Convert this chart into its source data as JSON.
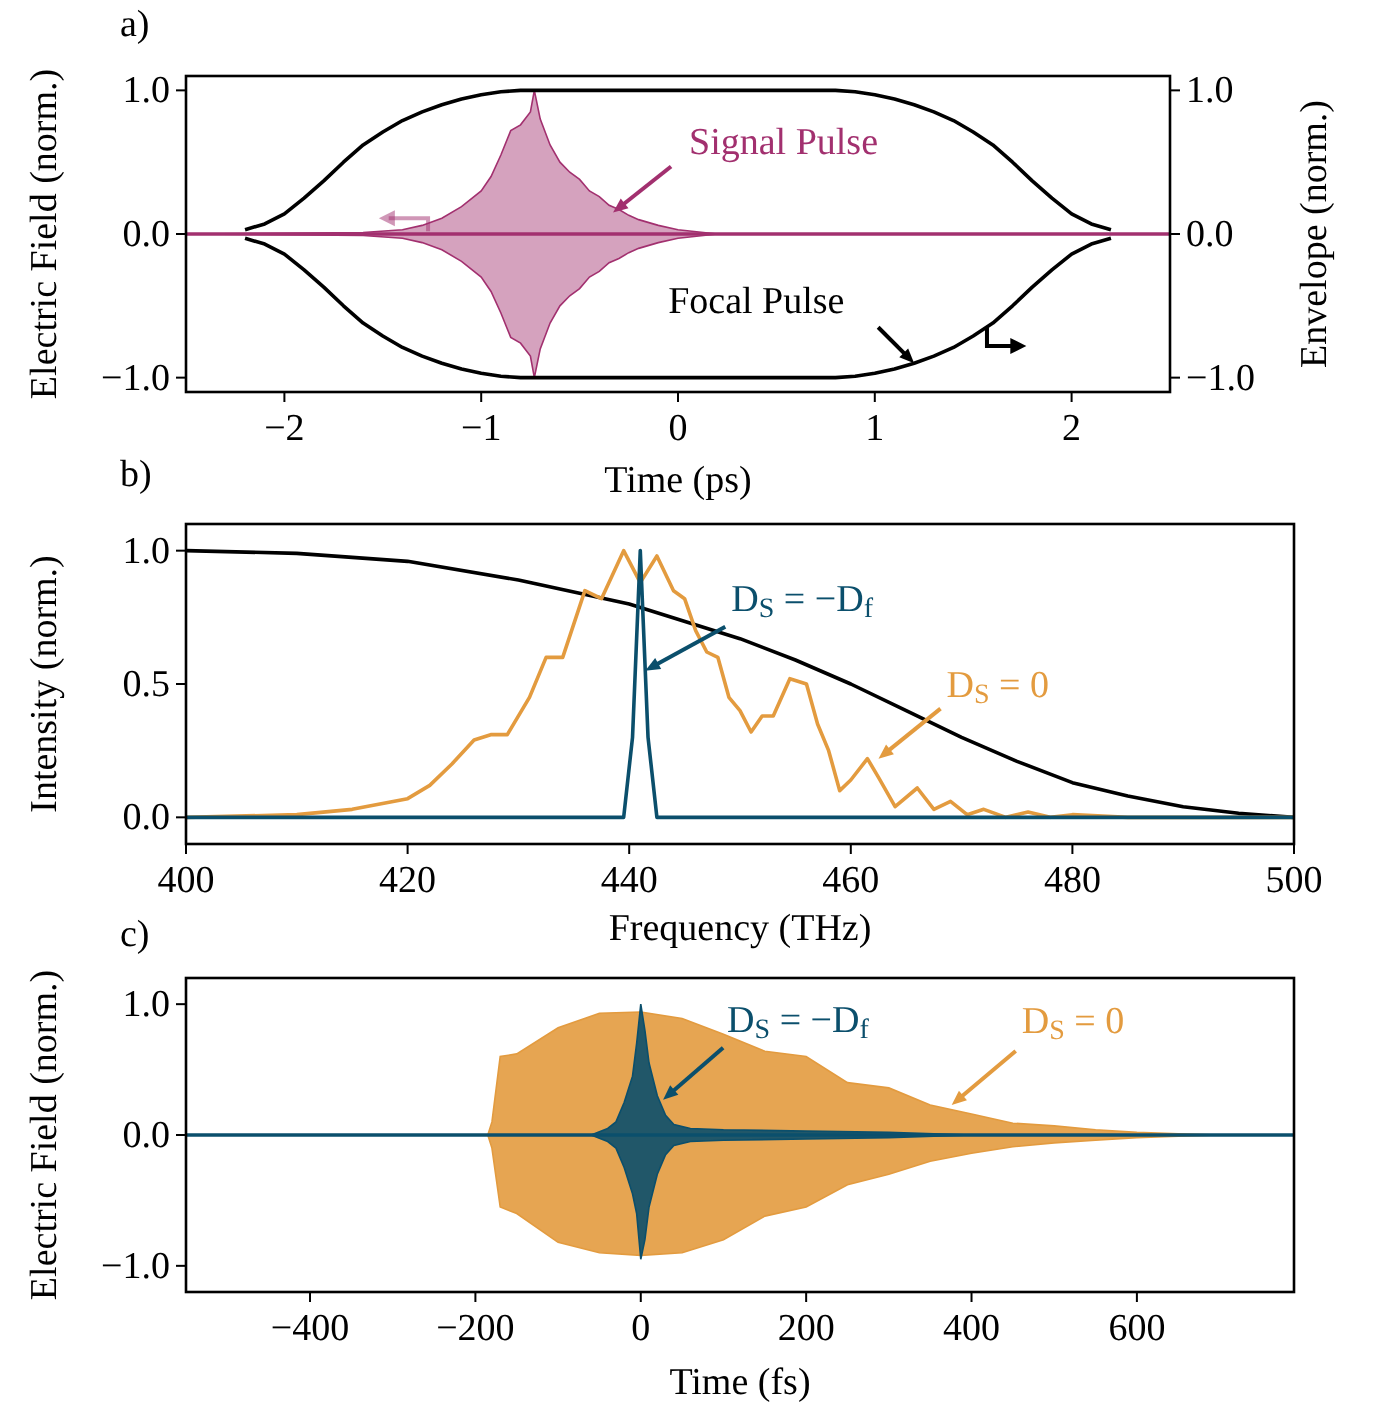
{
  "chart_data": [
    {
      "type": "line",
      "title": "a)",
      "xlabel": "Time (ps)",
      "ylabel": "Electric Field (norm.)",
      "y2label": "Envelope (norm.)",
      "xlim": [
        -2.5,
        2.5
      ],
      "xticks": [
        {
          "value": -2,
          "label": "−2"
        },
        {
          "value": -1,
          "label": "−1"
        },
        0,
        1,
        2
      ],
      "ylim": [
        -1.1,
        1.1
      ],
      "yticks": [
        {
          "value": -1,
          "label": "−1.0"
        },
        {
          "value": 0,
          "label": "0.0"
        },
        {
          "value": 1,
          "label": "1.0"
        }
      ],
      "y2lim": [
        -1.1,
        1.1
      ],
      "y2ticks": [
        {
          "value": -1,
          "label": "−1.0"
        },
        {
          "value": 0,
          "label": "0.0"
        },
        {
          "value": 1,
          "label": "1.0"
        }
      ],
      "series": [
        {
          "color": "#a2306f",
          "x": [
            -2.5,
            -1.6,
            -1.4,
            -1.3,
            -1.2,
            -1.1,
            -1.0,
            -0.95,
            -0.9,
            -0.85,
            -0.8,
            -0.75,
            -0.73,
            -0.7,
            -0.65,
            -0.6,
            -0.55,
            -0.5,
            -0.45,
            -0.4,
            -0.35,
            -0.3,
            -0.25,
            -0.2,
            -0.1,
            0,
            0.2,
            2.5
          ],
          "values": [
            0,
            0,
            0,
            0,
            0,
            0,
            0,
            0,
            0,
            0,
            0,
            0,
            0,
            0,
            0,
            0,
            0,
            0,
            0,
            0,
            0,
            0,
            0,
            0,
            0,
            0,
            0,
            0
          ],
          "upper": [
            0,
            0.01,
            0.03,
            0.06,
            0.11,
            0.19,
            0.3,
            0.4,
            0.55,
            0.72,
            0.76,
            0.85,
            1.0,
            0.8,
            0.62,
            0.5,
            0.43,
            0.38,
            0.3,
            0.26,
            0.2,
            0.17,
            0.13,
            0.1,
            0.06,
            0.03,
            0,
            0
          ],
          "lower": [
            0,
            -0.01,
            -0.03,
            -0.06,
            -0.11,
            -0.19,
            -0.3,
            -0.4,
            -0.55,
            -0.72,
            -0.76,
            -0.85,
            -1.0,
            -0.8,
            -0.62,
            -0.5,
            -0.43,
            -0.38,
            -0.3,
            -0.26,
            -0.2,
            -0.17,
            -0.13,
            -0.1,
            -0.06,
            -0.03,
            0,
            0
          ]
        },
        {
          "color": "#000000",
          "x": [
            -2.2,
            -2.1,
            -2.0,
            -1.9,
            -1.8,
            -1.7,
            -1.6,
            -1.5,
            -1.4,
            -1.3,
            -1.2,
            -1.1,
            -1.0,
            -0.9,
            -0.8,
            0.8,
            0.9,
            1.0,
            1.1,
            1.2,
            1.3,
            1.4,
            1.5,
            1.6,
            1.7,
            1.8,
            1.9,
            2.0,
            2.1,
            2.2
          ],
          "values": [
            0.03,
            0.07,
            0.14,
            0.25,
            0.37,
            0.5,
            0.62,
            0.71,
            0.79,
            0.85,
            0.9,
            0.94,
            0.97,
            0.99,
            1.0,
            1.0,
            0.99,
            0.97,
            0.94,
            0.9,
            0.85,
            0.79,
            0.71,
            0.62,
            0.5,
            0.37,
            0.25,
            0.14,
            0.07,
            0.03
          ]
        },
        {
          "color": "#000000",
          "x": [
            -2.2,
            -2.1,
            -2.0,
            -1.9,
            -1.8,
            -1.7,
            -1.6,
            -1.5,
            -1.4,
            -1.3,
            -1.2,
            -1.1,
            -1.0,
            -0.9,
            -0.8,
            0.8,
            0.9,
            1.0,
            1.1,
            1.2,
            1.3,
            1.4,
            1.5,
            1.6,
            1.7,
            1.8,
            1.9,
            2.0,
            2.1,
            2.2
          ],
          "values": [
            -0.03,
            -0.07,
            -0.14,
            -0.25,
            -0.37,
            -0.5,
            -0.62,
            -0.71,
            -0.79,
            -0.85,
            -0.9,
            -0.94,
            -0.97,
            -0.99,
            -1.0,
            -1.0,
            -0.99,
            -0.97,
            -0.94,
            -0.9,
            -0.85,
            -0.79,
            -0.71,
            -0.62,
            -0.5,
            -0.37,
            -0.25,
            -0.14,
            -0.07,
            -0.03
          ]
        }
      ],
      "annotations": [
        {
          "text": "Signal Pulse",
          "x": -0.33,
          "y": 0.15
        },
        {
          "text": "Focal Pulse",
          "x": 1.2,
          "y": -0.9
        }
      ]
    },
    {
      "type": "line",
      "title": "b)",
      "xlabel": "Frequency (THz)",
      "ylabel": "Intensity (norm.)",
      "xlim": [
        400,
        500
      ],
      "xticks": [
        400,
        420,
        440,
        460,
        480,
        500
      ],
      "ylim": [
        -0.1,
        1.1
      ],
      "yticks": [
        {
          "value": 0,
          "label": "0.0"
        },
        {
          "value": 0.5,
          "label": "0.5"
        },
        {
          "value": 1,
          "label": "1.0"
        }
      ],
      "series": [
        {
          "color": "#000000",
          "x": [
            400,
            410,
            420,
            430,
            440,
            450,
            455,
            460,
            465,
            470,
            475,
            480,
            485,
            490,
            495,
            500
          ],
          "values": [
            1.0,
            0.99,
            0.96,
            0.89,
            0.8,
            0.67,
            0.59,
            0.5,
            0.4,
            0.3,
            0.21,
            0.13,
            0.08,
            0.04,
            0.015,
            0
          ]
        },
        {
          "color": "#e39b3f",
          "x": [
            400,
            410,
            415,
            420,
            422,
            424,
            426,
            427.5,
            429,
            431,
            432.5,
            434,
            436,
            437.5,
            439.5,
            441,
            442.5,
            444,
            445,
            446,
            447,
            448,
            449,
            450,
            451,
            452,
            453,
            454.5,
            456,
            457,
            458,
            459,
            460,
            461.5,
            462.5,
            464,
            466,
            467.5,
            469,
            470.5,
            472,
            474,
            476,
            478,
            480,
            485,
            500
          ],
          "values": [
            0,
            0.01,
            0.03,
            0.07,
            0.12,
            0.2,
            0.29,
            0.31,
            0.31,
            0.45,
            0.6,
            0.6,
            0.85,
            0.82,
            1.0,
            0.88,
            0.98,
            0.85,
            0.82,
            0.7,
            0.62,
            0.6,
            0.45,
            0.4,
            0.32,
            0.38,
            0.38,
            0.52,
            0.5,
            0.35,
            0.25,
            0.1,
            0.14,
            0.22,
            0.15,
            0.04,
            0.11,
            0.03,
            0.06,
            0.01,
            0.03,
            0,
            0.02,
            0,
            0.01,
            0,
            0
          ]
        },
        {
          "color": "#0b4f6c",
          "x": [
            400,
            439.5,
            440.3,
            441,
            441.7,
            442.5,
            500
          ],
          "values": [
            0,
            0,
            0.3,
            1.0,
            0.3,
            0,
            0
          ]
        }
      ],
      "annotations": [
        {
          "text": "D$_{S}$ = −D$_{f}$",
          "x": 441.45,
          "y": 0.55
        },
        {
          "text": "D$_{S}$ = 0",
          "x": 462.5,
          "y": 0.22
        }
      ]
    },
    {
      "type": "line",
      "title": "c)",
      "xlabel": "Time (fs)",
      "ylabel": "Electric Field (norm.)",
      "xlim": [
        -550,
        790
      ],
      "xticks": [
        {
          "value": -400,
          "label": "−400"
        },
        {
          "value": -200,
          "label": "−200"
        },
        0,
        200,
        400,
        600
      ],
      "ylim": [
        -1.2,
        1.2
      ],
      "yticks": [
        {
          "value": -1,
          "label": "−1.0"
        },
        {
          "value": 0,
          "label": "0.0"
        },
        {
          "value": 1,
          "label": "1.0"
        }
      ],
      "series": [
        {
          "color": "#e39b3f",
          "x": [
            -550,
            -185,
            -180,
            -170,
            -150,
            -100,
            -50,
            0,
            50,
            100,
            150,
            200,
            250,
            300,
            350,
            400,
            450,
            500,
            550,
            600,
            650,
            700,
            790
          ],
          "values": [
            null,
            null,
            null,
            null,
            null,
            null,
            null,
            null,
            null,
            null,
            null,
            null,
            null,
            null,
            null,
            null,
            null,
            null,
            null,
            null,
            null,
            null,
            null
          ],
          "upper": [
            0,
            0,
            0.1,
            0.6,
            0.62,
            0.82,
            0.93,
            0.94,
            0.89,
            0.77,
            0.64,
            0.6,
            0.4,
            0.36,
            0.23,
            0.16,
            0.09,
            0.07,
            0.04,
            0.02,
            0.01,
            0,
            0
          ],
          "lower": [
            0,
            0,
            -0.1,
            -0.55,
            -0.6,
            -0.82,
            -0.9,
            -0.92,
            -0.9,
            -0.8,
            -0.62,
            -0.55,
            -0.38,
            -0.3,
            -0.2,
            -0.14,
            -0.09,
            -0.06,
            -0.04,
            -0.02,
            -0.01,
            0,
            0
          ]
        },
        {
          "color": "#0b4f6c",
          "x": [
            -550,
            -60,
            -40,
            -30,
            -20,
            -10,
            -5,
            0,
            5,
            10,
            20,
            30,
            40,
            60,
            100,
            200,
            300,
            400,
            790
          ],
          "values": [
            0,
            0,
            0,
            0,
            0,
            0,
            0,
            0,
            0,
            0,
            0,
            0,
            0,
            0,
            0,
            0,
            0,
            0,
            0
          ],
          "upper": [
            0,
            0,
            0.05,
            0.1,
            0.25,
            0.45,
            0.7,
            1.0,
            0.8,
            0.55,
            0.3,
            0.15,
            0.08,
            0.05,
            0.04,
            0.03,
            0.02,
            0,
            0
          ],
          "lower": [
            0,
            0,
            -0.05,
            -0.1,
            -0.25,
            -0.45,
            -0.6,
            -0.95,
            -0.8,
            -0.55,
            -0.3,
            -0.15,
            -0.08,
            -0.05,
            -0.04,
            -0.03,
            -0.02,
            0,
            0
          ]
        }
      ],
      "annotations": [
        {
          "text": "D$_{S}$ = −D$_{f}$",
          "x": 27,
          "y": 0.27
        },
        {
          "text": "D$_{S}$ = 0",
          "x": 376,
          "y": 0.23
        }
      ]
    }
  ]
}
